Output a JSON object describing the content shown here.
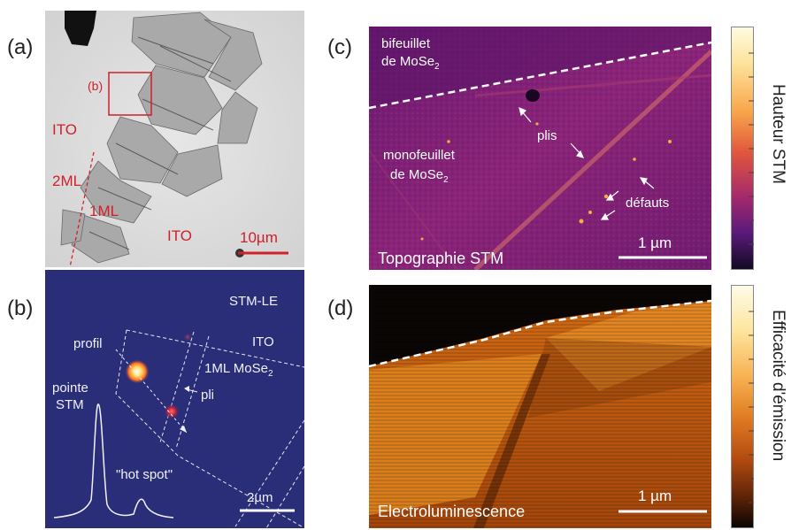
{
  "figure": {
    "panel_labels": {
      "a": "(a)",
      "b": "(b)",
      "c": "(c)",
      "d": "(d)"
    },
    "panel_a": {
      "inset_label": "(b)",
      "ito_top": "ITO",
      "ito_bottom": "ITO",
      "bilayer": "2ML",
      "monolayer": "1ML",
      "scalebar": "10µm"
    },
    "panel_b": {
      "title": "STM-LE",
      "ito": "ITO",
      "monolayer_prefix": "1ML MoSe",
      "monolayer_sub": "2",
      "profil": "profil",
      "pli": "pli",
      "tip_line1": "pointe",
      "tip_line2": "STM",
      "hotspot": "\"hot spot\"",
      "scalebar": "2µm"
    },
    "panel_c": {
      "bilayer_line1": "bifeuillet",
      "bilayer_line2_prefix": "de MoSe",
      "bilayer_line2_sub": "2",
      "mono_line1": "monofeuillet",
      "mono_line2_prefix": "de MoSe",
      "mono_line2_sub": "2",
      "folds": "plis",
      "defects": "défauts",
      "scalebar": "1 µm",
      "caption": "Topographie STM",
      "colorbar_label": "Hauteur STM"
    },
    "panel_d": {
      "caption": "Electroluminescence",
      "scalebar": "1 µm",
      "colorbar_label": "Efficacité d'émission"
    },
    "colors": {
      "red_annotation": "#d0202a",
      "stm_background": "#2a2e78",
      "topo_background": "#7a1f78",
      "el_background": "#b5500f"
    }
  }
}
